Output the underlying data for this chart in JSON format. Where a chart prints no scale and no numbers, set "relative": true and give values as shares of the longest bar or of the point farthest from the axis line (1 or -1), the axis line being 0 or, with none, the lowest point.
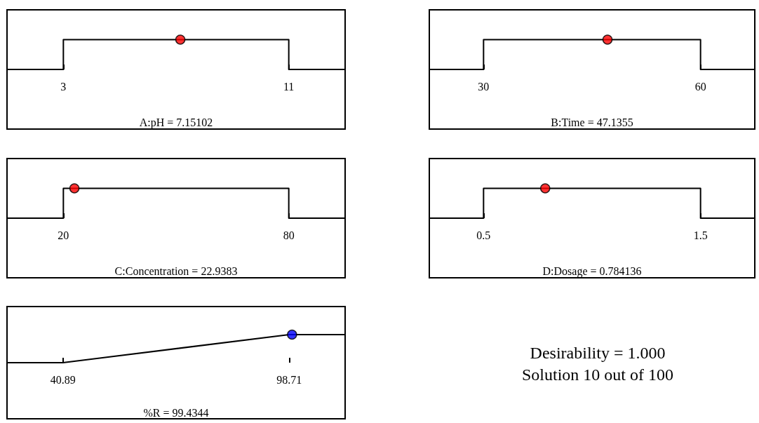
{
  "chart_data": [
    {
      "type": "line",
      "xlabel": "A:pH = 7.15102",
      "xlim": [
        1,
        13
      ],
      "xticks": [
        3,
        11
      ],
      "relative": true,
      "series": [
        {
          "type": "line",
          "color": "#000000",
          "marker": "none",
          "x": [
            1,
            3,
            3,
            11,
            11,
            13
          ],
          "values": [
            0,
            0,
            1,
            1,
            0,
            0
          ]
        },
        {
          "type": "scatter",
          "color": "#ff0000",
          "marker": "circle",
          "x": [
            7.15102
          ],
          "values": [
            1
          ]
        }
      ]
    },
    {
      "type": "line",
      "xlabel": "B:Time = 47.1355",
      "xlim": [
        22.5,
        67.5
      ],
      "xticks": [
        30,
        60
      ],
      "relative": true,
      "series": [
        {
          "type": "line",
          "color": "#000000",
          "marker": "none",
          "x": [
            22.5,
            30,
            30,
            60,
            60,
            67.5
          ],
          "values": [
            0,
            0,
            1,
            1,
            0,
            0
          ]
        },
        {
          "type": "scatter",
          "color": "#ff0000",
          "marker": "circle",
          "x": [
            47.1355
          ],
          "values": [
            1
          ]
        }
      ]
    },
    {
      "type": "line",
      "xlabel": "C:Concentration = 22.9383",
      "xlim": [
        5,
        95
      ],
      "xticks": [
        20,
        80
      ],
      "relative": true,
      "series": [
        {
          "type": "line",
          "color": "#000000",
          "marker": "none",
          "x": [
            5,
            20,
            20,
            80,
            80,
            95
          ],
          "values": [
            0,
            0,
            1,
            1,
            0,
            0
          ]
        },
        {
          "type": "scatter",
          "color": "#ff0000",
          "marker": "circle",
          "x": [
            22.9383
          ],
          "values": [
            1
          ]
        }
      ]
    },
    {
      "type": "line",
      "xlabel": "D:Dosage = 0.784136",
      "xlim": [
        0.25,
        1.75
      ],
      "xticks": [
        0.5,
        1.5
      ],
      "relative": true,
      "series": [
        {
          "type": "line",
          "color": "#000000",
          "marker": "none",
          "x": [
            0.25,
            0.5,
            0.5,
            1.5,
            1.5,
            1.75
          ],
          "values": [
            0,
            0,
            1,
            1,
            0,
            0
          ]
        },
        {
          "type": "scatter",
          "color": "#ff0000",
          "marker": "circle",
          "x": [
            0.784136
          ],
          "values": [
            1
          ]
        }
      ]
    },
    {
      "type": "line",
      "xlabel": "%R = 99.4344",
      "xlim": [
        26.6,
        113
      ],
      "xticks": [
        40.89,
        98.71
      ],
      "relative": true,
      "series": [
        {
          "type": "line",
          "color": "#000000",
          "marker": "none",
          "x": [
            26.6,
            40.89,
            98.71,
            113
          ],
          "values": [
            0,
            0,
            1,
            1
          ]
        },
        {
          "type": "scatter",
          "color": "#0000ff",
          "marker": "circle",
          "x": [
            99.4344
          ],
          "values": [
            1
          ]
        }
      ]
    },
    {
      "type": "other",
      "annotations": [
        "Desirability = 1.000",
        "Solution 10 out of 100"
      ]
    }
  ]
}
